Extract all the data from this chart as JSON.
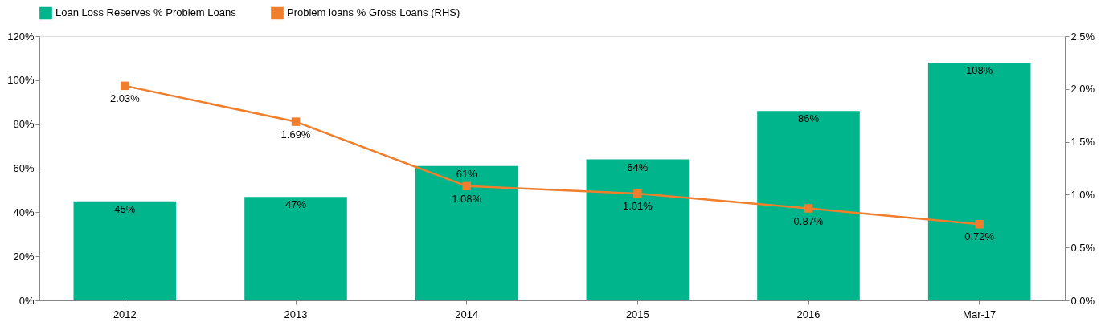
{
  "chart_data": {
    "type": "bar",
    "categories": [
      "2012",
      "2013",
      "2014",
      "2015",
      "2016",
      "Mar-17"
    ],
    "series": [
      {
        "name": "Loan Loss Reserves % Problem Loans",
        "color": "#00b48c",
        "values": [
          45,
          47,
          61,
          64,
          86,
          108
        ],
        "value_labels": [
          "45%",
          "47%",
          "61%",
          "64%",
          "86%",
          "108%"
        ]
      },
      {
        "name": "Problem loans % Gross Loans (RHS)",
        "type": "line",
        "axis": "y2",
        "color": "#f07f2d",
        "marker": "square",
        "line_style": "solid",
        "values": [
          2.03,
          1.69,
          1.08,
          1.01,
          0.87,
          0.72
        ],
        "value_labels": [
          "2.03%",
          "1.69%",
          "1.08%",
          "1.01%",
          "0.87%",
          "0.72%"
        ]
      }
    ],
    "ylim": [
      0,
      120
    ],
    "yticks": [
      {
        "value": 0,
        "label": "0%"
      },
      {
        "value": 20,
        "label": "20%"
      },
      {
        "value": 40,
        "label": "40%"
      },
      {
        "value": 60,
        "label": "60%"
      },
      {
        "value": 80,
        "label": "80%"
      },
      {
        "value": 100,
        "label": "100%"
      },
      {
        "value": 120,
        "label": "120%"
      }
    ],
    "y2lim": [
      0,
      2.5
    ],
    "y2ticks": [
      {
        "value": 0,
        "label": "0.0%"
      },
      {
        "value": 0.5,
        "label": "0.5%"
      },
      {
        "value": 1.0,
        "label": "1.0%"
      },
      {
        "value": 1.5,
        "label": "1.5%"
      },
      {
        "value": 2.0,
        "label": "2.0%"
      },
      {
        "value": 2.5,
        "label": "2.5%"
      }
    ],
    "grid": false,
    "legend": "top left"
  }
}
